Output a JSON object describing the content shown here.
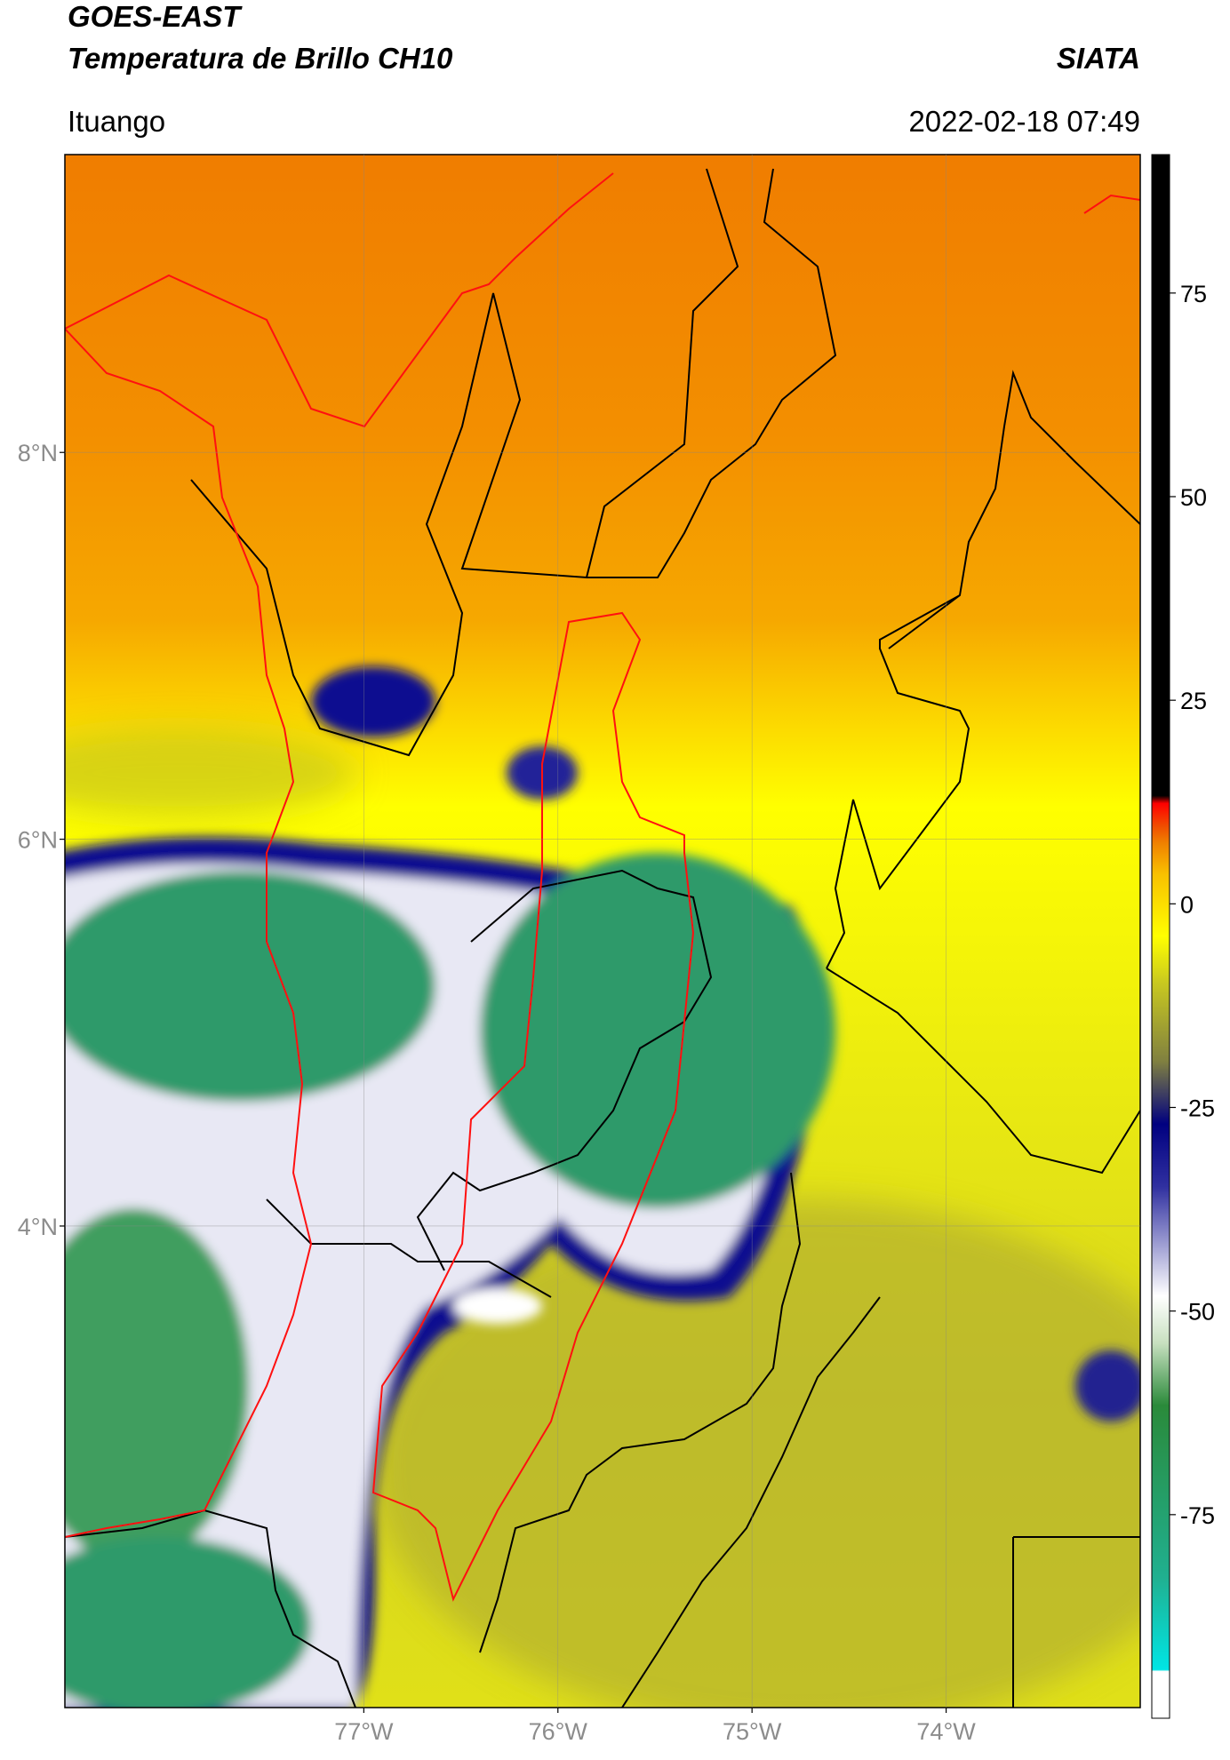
{
  "header": {
    "title": "GOES-EAST",
    "subtitle": "Temperatura de Brillo CH10",
    "brand": "SIATA",
    "location": "Ituango",
    "datetime": "2022-02-18 07:49"
  },
  "map": {
    "latlim": [
      1.51,
      9.54
    ],
    "lonlim": [
      -78.54,
      -73.0
    ],
    "lat_ticks": [
      {
        "value": 8,
        "label": "8°N"
      },
      {
        "value": 6,
        "label": "6°N"
      },
      {
        "value": 4,
        "label": "4°N"
      }
    ],
    "lon_ticks": [
      {
        "value": -77,
        "label": "77°W"
      },
      {
        "value": -76,
        "label": "76°W"
      },
      {
        "value": -75,
        "label": "75°W"
      },
      {
        "value": -74,
        "label": "74°W"
      }
    ]
  },
  "colorbar": {
    "lim": [
      -100,
      92
    ],
    "ticks": [
      75,
      50,
      25,
      0,
      -25,
      -50,
      -75
    ]
  }
}
